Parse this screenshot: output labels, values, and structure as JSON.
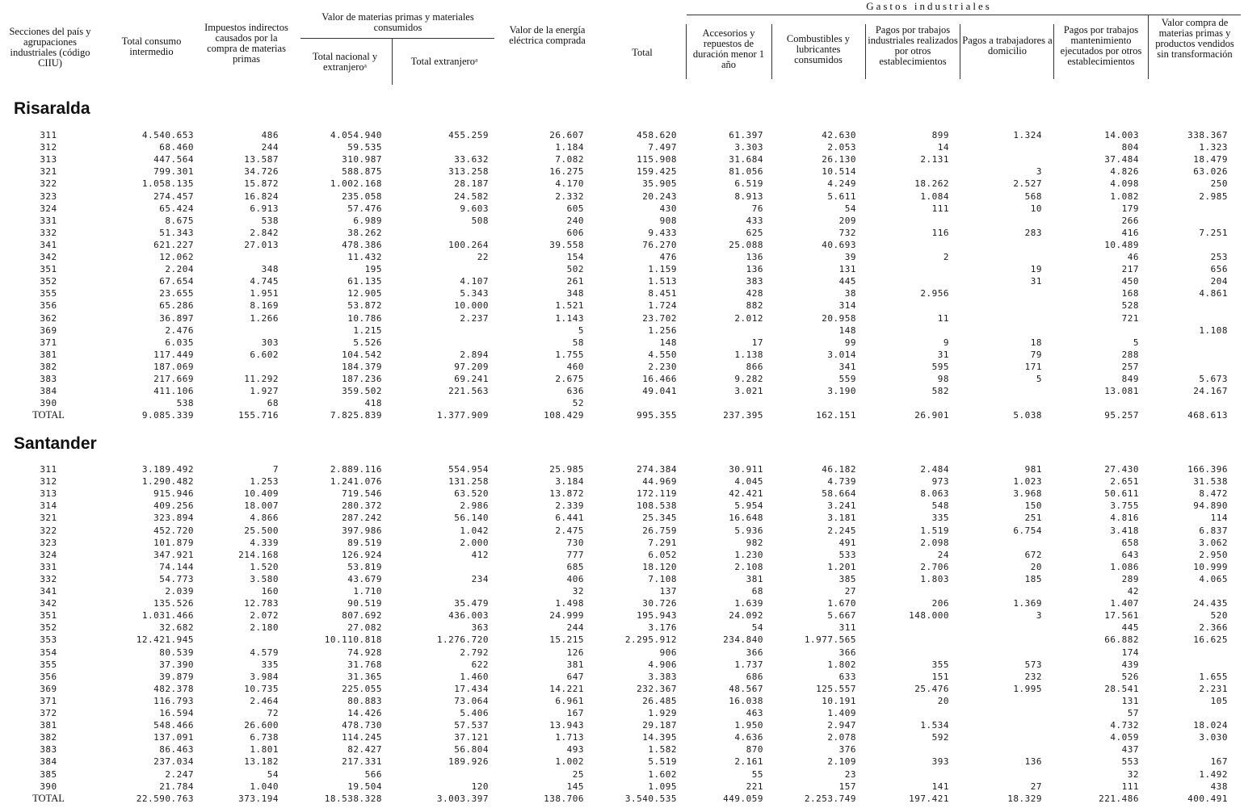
{
  "header": {
    "gastos_title": "Gastos    industriales",
    "sections_label": "Secciones del país y agrupaciones industriales (código CIIU)",
    "total_consumo": "Total consumo intermedio",
    "impuestos": "Impuestos indirectos causados por la compra de materias primas",
    "materias_group": "Valor de materias primas y materiales consumidos",
    "total_nacional": "Total nacional y extranjeroᵃ",
    "total_extranjero": "Total extranjeroᵃ",
    "energia": "Valor de la energía eléctrica comprada",
    "total_gastos": "Total",
    "accesorios": "Accesorios y repuestos de duración menor 1 año",
    "combustibles": "Combustibles y lubricantes consumidos",
    "pagos_industriales": "Pagos por trabajos industriales realizados por otros establecimientos",
    "pagos_domicilio": "Pagos a trabajadores a domicilio",
    "pagos_mantenimiento": "Pagos por trabajos mantenimiento ejecutados por otros establecimientos",
    "valor_compra": "Valor compra de materias primas y productos vendidos sin transformación"
  },
  "sections": [
    {
      "name": "Risaralda",
      "rows": [
        [
          "311",
          "4.540.653",
          "486",
          "4.054.940",
          "455.259",
          "26.607",
          "458.620",
          "61.397",
          "42.630",
          "899",
          "1.324",
          "14.003",
          "338.367"
        ],
        [
          "312",
          "68.460",
          "244",
          "59.535",
          "",
          "1.184",
          "7.497",
          "3.303",
          "2.053",
          "14",
          "",
          "804",
          "1.323"
        ],
        [
          "313",
          "447.564",
          "13.587",
          "310.987",
          "33.632",
          "7.082",
          "115.908",
          "31.684",
          "26.130",
          "2.131",
          "",
          "37.484",
          "18.479"
        ],
        [
          "321",
          "799.301",
          "34.726",
          "588.875",
          "313.258",
          "16.275",
          "159.425",
          "81.056",
          "10.514",
          "",
          "3",
          "4.826",
          "63.026"
        ],
        [
          "322",
          "1.058.135",
          "15.872",
          "1.002.168",
          "28.187",
          "4.170",
          "35.905",
          "6.519",
          "4.249",
          "18.262",
          "2.527",
          "4.098",
          "250"
        ],
        [
          "323",
          "274.457",
          "16.824",
          "235.058",
          "24.582",
          "2.332",
          "20.243",
          "8.913",
          "5.611",
          "1.084",
          "568",
          "1.082",
          "2.985"
        ],
        [
          "324",
          "65.424",
          "6.913",
          "57.476",
          "9.603",
          "605",
          "430",
          "76",
          "54",
          "111",
          "10",
          "179",
          ""
        ],
        [
          "331",
          "8.675",
          "538",
          "6.989",
          "508",
          "240",
          "908",
          "433",
          "209",
          "",
          "",
          "266",
          ""
        ],
        [
          "332",
          "51.343",
          "2.842",
          "38.262",
          "",
          "606",
          "9.433",
          "625",
          "732",
          "116",
          "283",
          "416",
          "7.251"
        ],
        [
          "341",
          "621.227",
          "27.013",
          "478.386",
          "100.264",
          "39.558",
          "76.270",
          "25.088",
          "40.693",
          "",
          "",
          "10.489",
          ""
        ],
        [
          "342",
          "12.062",
          "",
          "11.432",
          "22",
          "154",
          "476",
          "136",
          "39",
          "2",
          "",
          "46",
          "253"
        ],
        [
          "351",
          "2.204",
          "348",
          "195",
          "",
          "502",
          "1.159",
          "136",
          "131",
          "",
          "19",
          "217",
          "656"
        ],
        [
          "352",
          "67.654",
          "4.745",
          "61.135",
          "4.107",
          "261",
          "1.513",
          "383",
          "445",
          "",
          "31",
          "450",
          "204"
        ],
        [
          "355",
          "23.655",
          "1.951",
          "12.905",
          "5.343",
          "348",
          "8.451",
          "428",
          "38",
          "2.956",
          "",
          "168",
          "4.861"
        ],
        [
          "356",
          "65.286",
          "8.169",
          "53.872",
          "10.000",
          "1.521",
          "1.724",
          "882",
          "314",
          "",
          "",
          "528",
          ""
        ],
        [
          "362",
          "36.897",
          "1.266",
          "10.786",
          "2.237",
          "1.143",
          "23.702",
          "2.012",
          "20.958",
          "11",
          "",
          "721",
          ""
        ],
        [
          "369",
          "2.476",
          "",
          "1.215",
          "",
          "5",
          "1.256",
          "",
          "148",
          "",
          "",
          "",
          "1.108"
        ],
        [
          "371",
          "6.035",
          "303",
          "5.526",
          "",
          "58",
          "148",
          "17",
          "99",
          "9",
          "18",
          "5",
          ""
        ],
        [
          "381",
          "117.449",
          "6.602",
          "104.542",
          "2.894",
          "1.755",
          "4.550",
          "1.138",
          "3.014",
          "31",
          "79",
          "288",
          ""
        ],
        [
          "382",
          "187.069",
          "",
          "184.379",
          "97.209",
          "460",
          "2.230",
          "866",
          "341",
          "595",
          "171",
          "257",
          ""
        ],
        [
          "383",
          "217.669",
          "11.292",
          "187.236",
          "69.241",
          "2.675",
          "16.466",
          "9.282",
          "559",
          "98",
          "5",
          "849",
          "5.673"
        ],
        [
          "384",
          "411.106",
          "1.927",
          "359.502",
          "221.563",
          "636",
          "49.041",
          "3.021",
          "3.190",
          "582",
          "",
          "13.081",
          "24.167"
        ],
        [
          "390",
          "538",
          "68",
          "418",
          "",
          "52",
          "",
          "",
          "",
          "",
          "",
          "",
          ""
        ]
      ],
      "total": [
        "TOTAL",
        "9.085.339",
        "155.716",
        "7.825.839",
        "1.377.909",
        "108.429",
        "995.355",
        "237.395",
        "162.151",
        "26.901",
        "5.038",
        "95.257",
        "468.613"
      ]
    },
    {
      "name": "Santander",
      "rows": [
        [
          "311",
          "3.189.492",
          "7",
          "2.889.116",
          "554.954",
          "25.985",
          "274.384",
          "30.911",
          "46.182",
          "2.484",
          "981",
          "27.430",
          "166.396"
        ],
        [
          "312",
          "1.290.482",
          "1.253",
          "1.241.076",
          "131.258",
          "3.184",
          "44.969",
          "4.045",
          "4.739",
          "973",
          "1.023",
          "2.651",
          "31.538"
        ],
        [
          "313",
          "915.946",
          "10.409",
          "719.546",
          "63.520",
          "13.872",
          "172.119",
          "42.421",
          "58.664",
          "8.063",
          "3.968",
          "50.611",
          "8.472"
        ],
        [
          "314",
          "409.256",
          "18.007",
          "280.372",
          "2.986",
          "2.339",
          "108.538",
          "5.954",
          "3.241",
          "548",
          "150",
          "3.755",
          "94.890"
        ],
        [
          "321",
          "323.894",
          "4.866",
          "287.242",
          "56.140",
          "6.441",
          "25.345",
          "16.648",
          "3.181",
          "335",
          "251",
          "4.816",
          "114"
        ],
        [
          "322",
          "452.720",
          "25.500",
          "397.986",
          "1.042",
          "2.475",
          "26.759",
          "5.936",
          "2.245",
          "1.519",
          "6.754",
          "3.418",
          "6.837"
        ],
        [
          "323",
          "101.879",
          "4.339",
          "89.519",
          "2.000",
          "730",
          "7.291",
          "982",
          "491",
          "2.098",
          "",
          "658",
          "3.062"
        ],
        [
          "324",
          "347.921",
          "214.168",
          "126.924",
          "412",
          "777",
          "6.052",
          "1.230",
          "533",
          "24",
          "672",
          "643",
          "2.950"
        ],
        [
          "331",
          "74.144",
          "1.520",
          "53.819",
          "",
          "685",
          "18.120",
          "2.108",
          "1.201",
          "2.706",
          "20",
          "1.086",
          "10.999"
        ],
        [
          "332",
          "54.773",
          "3.580",
          "43.679",
          "234",
          "406",
          "7.108",
          "381",
          "385",
          "1.803",
          "185",
          "289",
          "4.065"
        ],
        [
          "341",
          "2.039",
          "160",
          "1.710",
          "",
          "32",
          "137",
          "68",
          "27",
          "",
          "",
          "42",
          ""
        ],
        [
          "342",
          "135.526",
          "12.783",
          "90.519",
          "35.479",
          "1.498",
          "30.726",
          "1.639",
          "1.670",
          "206",
          "1.369",
          "1.407",
          "24.435"
        ],
        [
          "351",
          "1.031.466",
          "2.072",
          "807.692",
          "436.003",
          "24.999",
          "195.943",
          "24.092",
          "5.667",
          "148.000",
          "3",
          "17.561",
          "520"
        ],
        [
          "352",
          "32.682",
          "2.180",
          "27.082",
          "363",
          "244",
          "3.176",
          "54",
          "311",
          "",
          "",
          "445",
          "2.366"
        ],
        [
          "353",
          "12.421.945",
          "",
          "10.110.818",
          "1.276.720",
          "15.215",
          "2.295.912",
          "234.840",
          "1.977.565",
          "",
          "",
          "66.882",
          "16.625"
        ],
        [
          "354",
          "80.539",
          "4.579",
          "74.928",
          "2.792",
          "126",
          "906",
          "366",
          "366",
          "",
          "",
          "174",
          ""
        ],
        [
          "355",
          "37.390",
          "335",
          "31.768",
          "622",
          "381",
          "4.906",
          "1.737",
          "1.802",
          "355",
          "573",
          "439",
          ""
        ],
        [
          "356",
          "39.879",
          "3.984",
          "31.365",
          "1.460",
          "647",
          "3.383",
          "686",
          "633",
          "151",
          "232",
          "526",
          "1.655"
        ],
        [
          "369",
          "482.378",
          "10.735",
          "225.055",
          "17.434",
          "14.221",
          "232.367",
          "48.567",
          "125.557",
          "25.476",
          "1.995",
          "28.541",
          "2.231"
        ],
        [
          "371",
          "116.793",
          "2.464",
          "80.883",
          "73.064",
          "6.961",
          "26.485",
          "16.038",
          "10.191",
          "20",
          "",
          "131",
          "105"
        ],
        [
          "372",
          "16.594",
          "72",
          "14.426",
          "5.406",
          "167",
          "1.929",
          "463",
          "1.409",
          "",
          "",
          "57",
          ""
        ],
        [
          "381",
          "548.466",
          "26.600",
          "478.730",
          "57.537",
          "13.943",
          "29.187",
          "1.950",
          "2.947",
          "1.534",
          "",
          "4.732",
          "18.024"
        ],
        [
          "382",
          "137.091",
          "6.738",
          "114.245",
          "37.121",
          "1.713",
          "14.395",
          "4.636",
          "2.078",
          "592",
          "",
          "4.059",
          "3.030"
        ],
        [
          "383",
          "86.463",
          "1.801",
          "82.427",
          "56.804",
          "493",
          "1.582",
          "870",
          "376",
          "",
          "",
          "437",
          ""
        ],
        [
          "384",
          "237.034",
          "13.182",
          "217.331",
          "189.926",
          "1.002",
          "5.519",
          "2.161",
          "2.109",
          "393",
          "136",
          "553",
          "167"
        ],
        [
          "385",
          "2.247",
          "54",
          "566",
          "",
          "25",
          "1.602",
          "55",
          "23",
          "",
          "",
          "32",
          "1.492"
        ],
        [
          "390",
          "21.784",
          "1.040",
          "19.504",
          "120",
          "145",
          "1.095",
          "221",
          "157",
          "141",
          "27",
          "111",
          "438"
        ]
      ],
      "total": [
        "TOTAL",
        "22.590.763",
        "373.194",
        "18.538.328",
        "3.003.397",
        "138.706",
        "3.540.535",
        "449.059",
        "2.253.749",
        "197.421",
        "18.329",
        "221.486",
        "400.491"
      ]
    }
  ]
}
